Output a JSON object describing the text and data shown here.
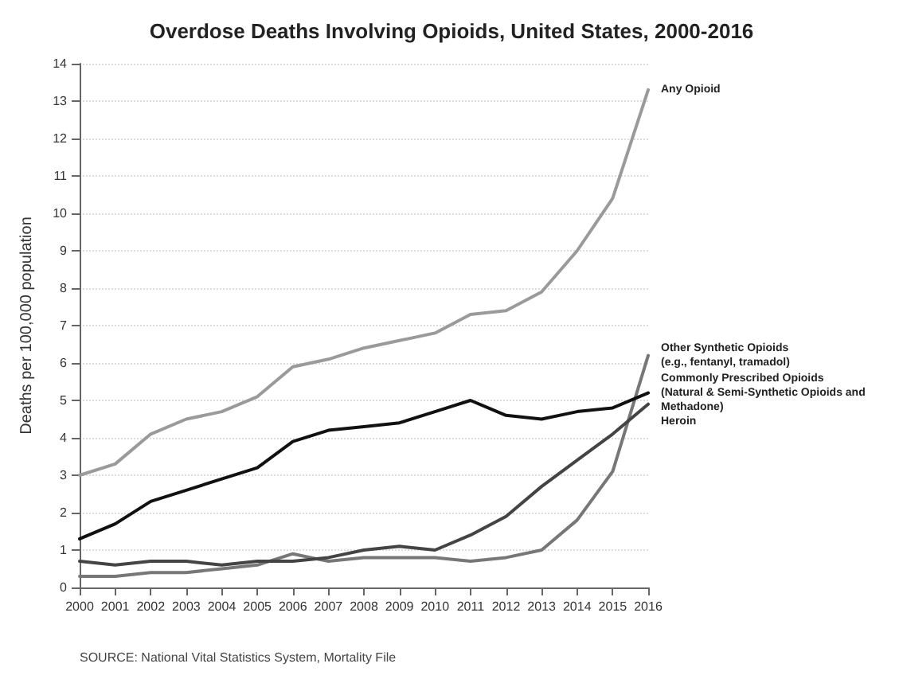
{
  "chart_data": {
    "type": "line",
    "title": "Overdose Deaths Involving Opioids, United States, 2000-2016",
    "ylabel": "Deaths per 100,000 population",
    "categories": [
      "2000",
      "2001",
      "2002",
      "2003",
      "2004",
      "2005",
      "2006",
      "2007",
      "2008",
      "2009",
      "2010",
      "2011",
      "2012",
      "2013",
      "2014",
      "2015",
      "2016"
    ],
    "series": [
      {
        "name": "Any Opioid",
        "color": "#9a9a9a",
        "values": [
          3.0,
          3.3,
          4.1,
          4.5,
          4.7,
          5.1,
          5.9,
          6.1,
          6.4,
          6.6,
          6.8,
          7.3,
          7.4,
          7.9,
          9.0,
          10.4,
          13.3
        ]
      },
      {
        "name": "Other Synthetic Opioids\n(e.g., fentanyl, tramadol)",
        "color": "#777777",
        "values": [
          0.3,
          0.3,
          0.4,
          0.4,
          0.5,
          0.6,
          0.9,
          0.7,
          0.8,
          0.8,
          0.8,
          0.7,
          0.8,
          1.0,
          1.8,
          3.1,
          6.2
        ]
      },
      {
        "name": "Commonly Prescribed Opioids\n(Natural & Semi-Synthetic Opioids and Methadone)",
        "color": "#111111",
        "values": [
          1.3,
          1.7,
          2.3,
          2.6,
          2.9,
          3.2,
          3.9,
          4.2,
          4.3,
          4.4,
          4.7,
          5.0,
          4.6,
          4.5,
          4.7,
          4.8,
          5.2
        ]
      },
      {
        "name": "Heroin",
        "color": "#444444",
        "values": [
          0.7,
          0.6,
          0.7,
          0.7,
          0.6,
          0.7,
          0.7,
          0.8,
          1.0,
          1.1,
          1.0,
          1.4,
          1.9,
          2.7,
          3.4,
          4.1,
          4.9
        ]
      }
    ],
    "ylim": [
      0,
      14
    ],
    "yticks": [
      0,
      1,
      2,
      3,
      4,
      5,
      6,
      7,
      8,
      9,
      10,
      11,
      12,
      13,
      14
    ],
    "grid": "y",
    "legend": false,
    "marker": "none",
    "annotations": [
      "SOURCE: National Vital Statistics System, Mortality File"
    ]
  }
}
